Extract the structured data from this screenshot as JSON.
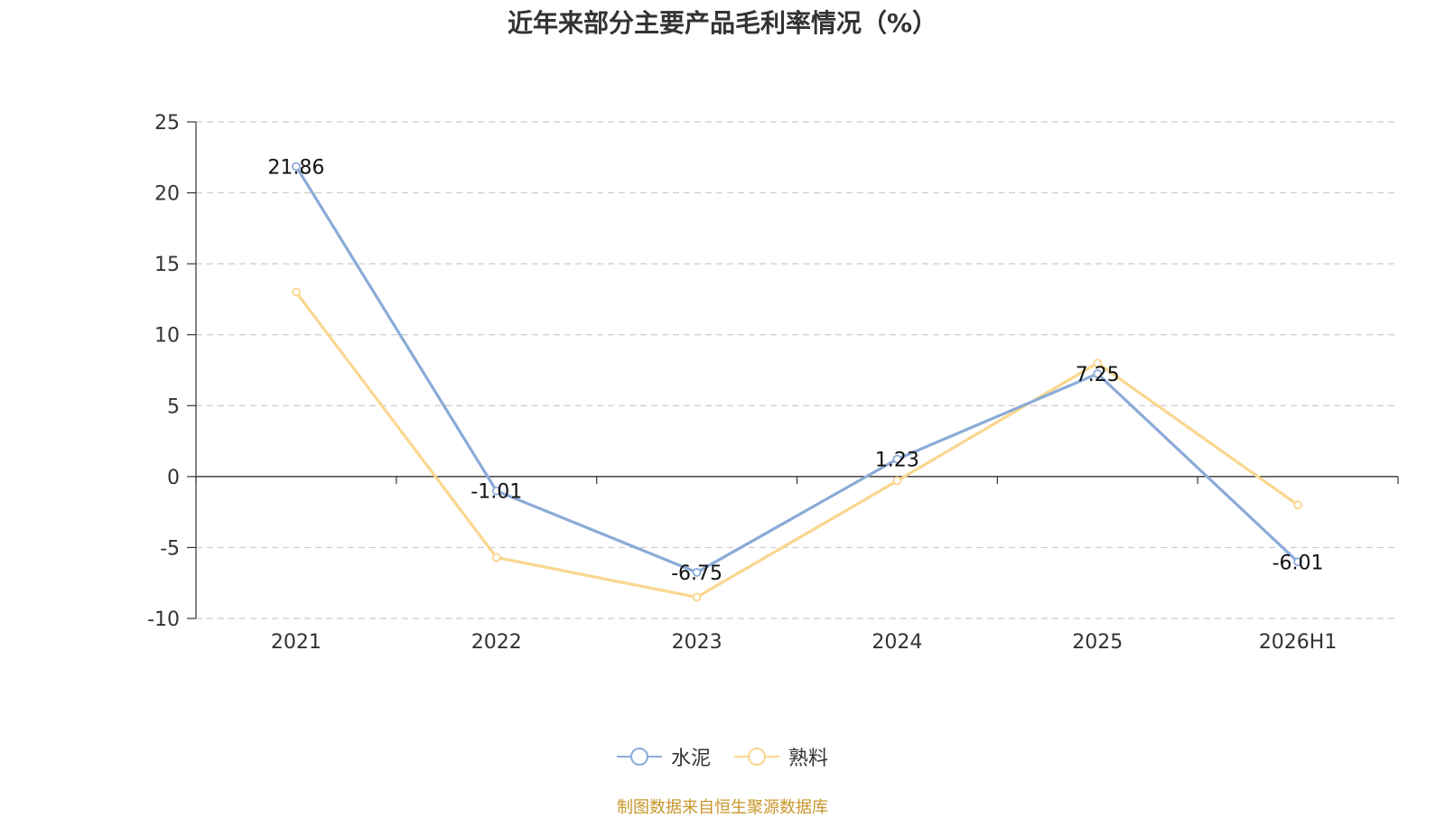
{
  "page": {
    "title": "近年来部分主要产品毛利率情况（%）",
    "source": "制图数据来自恒生聚源数据库"
  },
  "chart_data": {
    "type": "line",
    "title": "近年来部分主要产品毛利率情况（%）",
    "categories": [
      "2021",
      "2022",
      "2023",
      "2024",
      "2025",
      "2026H1"
    ],
    "ylim": [
      -10,
      25
    ],
    "yticks": [
      25,
      20,
      15,
      10,
      5,
      0,
      -5,
      -10
    ],
    "grid": true,
    "legend_position": "bottom-center",
    "series": [
      {
        "name": "水泥",
        "color": "#8aabd8",
        "values": [
          21.86,
          -1.01,
          -6.75,
          1.23,
          7.25,
          -6.01
        ],
        "labels": [
          "21.86",
          "-1.01",
          "-6.75",
          "1.23",
          "7.25",
          "-6.01"
        ]
      },
      {
        "name": "熟料",
        "color": "#fad68f",
        "values": [
          13.0,
          -5.7,
          -8.5,
          -0.3,
          8.0,
          -2.0
        ],
        "labels": []
      }
    ]
  }
}
